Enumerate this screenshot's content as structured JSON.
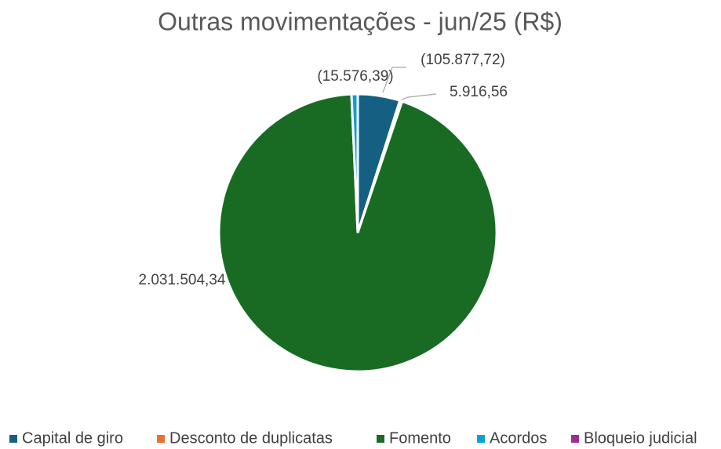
{
  "chart_data": {
    "type": "pie",
    "title": "Outras movimentações - jun/25 (R$)",
    "categories": [
      "Capital de giro",
      "Desconto de duplicatas",
      "Fomento",
      "Acordos",
      "Bloqueio judicial"
    ],
    "values": [
      -105877.72,
      5916.56,
      2031504.34,
      -15576.39,
      null
    ],
    "value_labels": [
      "(105.877,72)",
      "5.916,56",
      "2.031.504,34",
      "(15.576,39)",
      null
    ],
    "colors": [
      "#156082",
      "#E97132",
      "#196B24",
      "#0F9ED5",
      "#A02B93"
    ],
    "legend": "bottom"
  }
}
